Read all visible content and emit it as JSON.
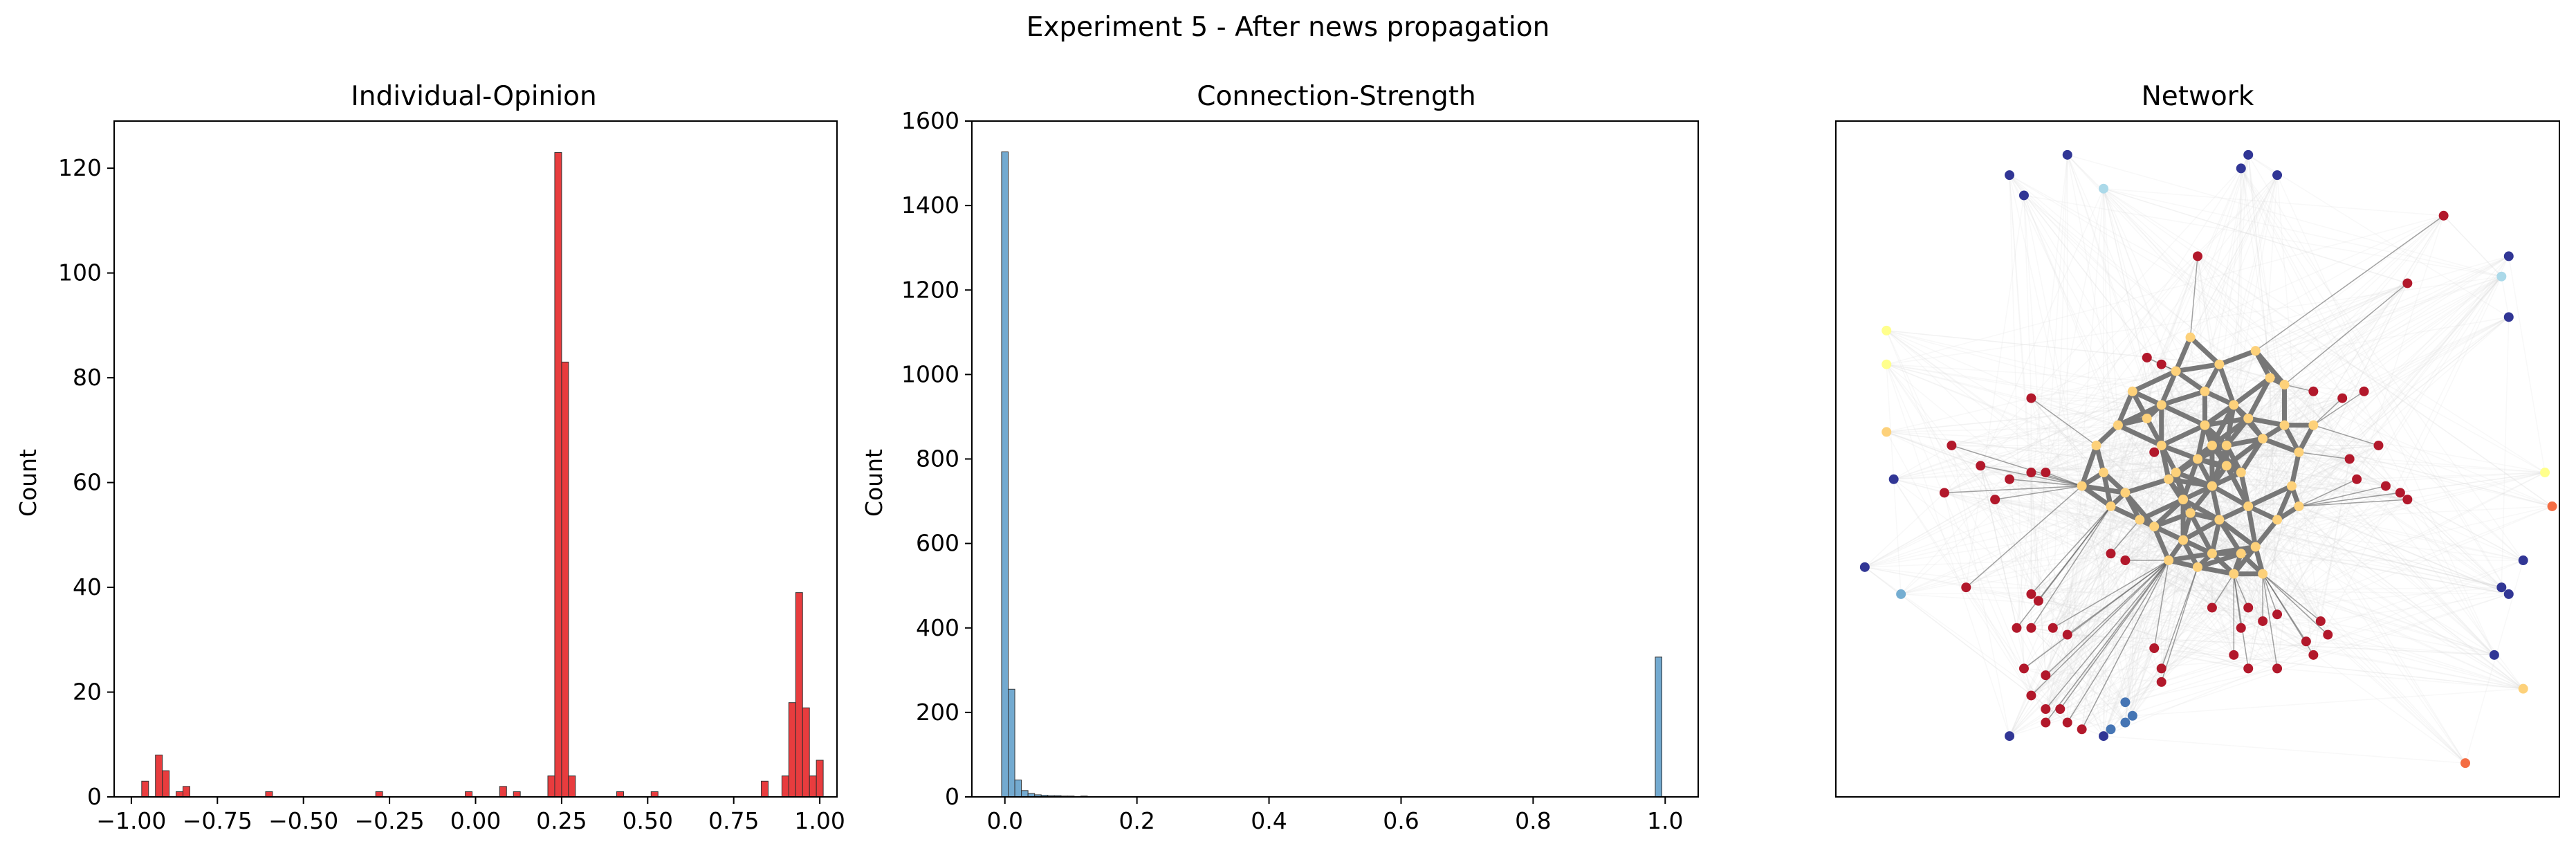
{
  "figure": {
    "suptitle": "Experiment 5 - After news propagation"
  },
  "chart_data": [
    {
      "type": "histogram",
      "title": "Individual-Opinion",
      "xlabel": "",
      "ylabel": "Count",
      "xlim": [
        -1.05,
        1.05
      ],
      "ylim": [
        0,
        129
      ],
      "xticks": [
        -1.0,
        -0.75,
        -0.5,
        -0.25,
        0.0,
        0.25,
        0.5,
        0.75,
        1.0
      ],
      "xtick_labels": [
        "−1.00",
        "−0.75",
        "−0.50",
        "−0.25",
        "0.00",
        "0.25",
        "0.50",
        "0.75",
        "1.00"
      ],
      "yticks": [
        0,
        20,
        40,
        60,
        80,
        100,
        120
      ],
      "bin_width": 0.02,
      "bar_color": "#e41a1c",
      "bins": [
        {
          "x": -0.96,
          "y": 3
        },
        {
          "x": -0.92,
          "y": 8
        },
        {
          "x": -0.9,
          "y": 5
        },
        {
          "x": -0.86,
          "y": 1
        },
        {
          "x": -0.84,
          "y": 2
        },
        {
          "x": -0.6,
          "y": 1
        },
        {
          "x": -0.28,
          "y": 1
        },
        {
          "x": -0.02,
          "y": 1
        },
        {
          "x": 0.08,
          "y": 2
        },
        {
          "x": 0.12,
          "y": 1
        },
        {
          "x": 0.22,
          "y": 4
        },
        {
          "x": 0.24,
          "y": 123
        },
        {
          "x": 0.26,
          "y": 83
        },
        {
          "x": 0.28,
          "y": 4
        },
        {
          "x": 0.42,
          "y": 1
        },
        {
          "x": 0.52,
          "y": 1
        },
        {
          "x": 0.84,
          "y": 3
        },
        {
          "x": 0.9,
          "y": 4
        },
        {
          "x": 0.92,
          "y": 18
        },
        {
          "x": 0.94,
          "y": 39
        },
        {
          "x": 0.96,
          "y": 17
        },
        {
          "x": 0.98,
          "y": 4
        },
        {
          "x": 1.0,
          "y": 7
        }
      ]
    },
    {
      "type": "histogram",
      "title": "Connection-Strength",
      "xlabel": "",
      "ylabel": "Count",
      "xlim": [
        -0.05,
        1.05
      ],
      "ylim": [
        0,
        1600
      ],
      "xticks": [
        0.0,
        0.2,
        0.4,
        0.6,
        0.8,
        1.0
      ],
      "xtick_labels": [
        "0.0",
        "0.2",
        "0.4",
        "0.6",
        "0.8",
        "1.0"
      ],
      "yticks": [
        0,
        200,
        400,
        600,
        800,
        1000,
        1200,
        1400,
        1600
      ],
      "bin_width": 0.01,
      "bar_color": "#5b9bc8",
      "bins": [
        {
          "x": 0.0,
          "y": 1527
        },
        {
          "x": 0.01,
          "y": 255
        },
        {
          "x": 0.02,
          "y": 40
        },
        {
          "x": 0.03,
          "y": 15
        },
        {
          "x": 0.04,
          "y": 8
        },
        {
          "x": 0.05,
          "y": 5
        },
        {
          "x": 0.06,
          "y": 4
        },
        {
          "x": 0.07,
          "y": 3
        },
        {
          "x": 0.08,
          "y": 3
        },
        {
          "x": 0.09,
          "y": 2
        },
        {
          "x": 0.1,
          "y": 2
        },
        {
          "x": 0.12,
          "y": 2
        },
        {
          "x": 0.14,
          "y": 1
        },
        {
          "x": 0.16,
          "y": 1
        },
        {
          "x": 0.18,
          "y": 1
        },
        {
          "x": 0.2,
          "y": 1
        },
        {
          "x": 0.23,
          "y": 1
        },
        {
          "x": 0.28,
          "y": 1
        },
        {
          "x": 0.99,
          "y": 331
        }
      ]
    },
    {
      "type": "scatter",
      "title": "Network",
      "xlabel": "",
      "ylabel": "",
      "xlim": [
        0,
        1
      ],
      "ylim": [
        0,
        1
      ],
      "axes_visible": false,
      "colors": {
        "red": "#b2182b",
        "orange": "#fdd17a",
        "blue": "#313695",
        "midblue": "#4575b4",
        "lightblue": "#74add1",
        "yellow": "#ffff8c",
        "orange2": "#f46d43",
        "pale": "#abd9e9"
      },
      "nodes": [
        {
          "x": 0.24,
          "y": 0.92,
          "c": "blue"
        },
        {
          "x": 0.26,
          "y": 0.89,
          "c": "blue"
        },
        {
          "x": 0.32,
          "y": 0.95,
          "c": "blue"
        },
        {
          "x": 0.37,
          "y": 0.9,
          "c": "pale"
        },
        {
          "x": 0.57,
          "y": 0.95,
          "c": "blue"
        },
        {
          "x": 0.56,
          "y": 0.93,
          "c": "blue"
        },
        {
          "x": 0.61,
          "y": 0.92,
          "c": "blue"
        },
        {
          "x": 0.84,
          "y": 0.86,
          "c": "red"
        },
        {
          "x": 0.93,
          "y": 0.8,
          "c": "blue"
        },
        {
          "x": 0.92,
          "y": 0.77,
          "c": "pale"
        },
        {
          "x": 0.93,
          "y": 0.71,
          "c": "blue"
        },
        {
          "x": 0.07,
          "y": 0.69,
          "c": "yellow"
        },
        {
          "x": 0.07,
          "y": 0.64,
          "c": "yellow"
        },
        {
          "x": 0.07,
          "y": 0.54,
          "c": "orange"
        },
        {
          "x": 0.08,
          "y": 0.47,
          "c": "blue"
        },
        {
          "x": 0.04,
          "y": 0.34,
          "c": "blue"
        },
        {
          "x": 0.09,
          "y": 0.3,
          "c": "lightblue"
        },
        {
          "x": 0.18,
          "y": 0.31,
          "c": "red"
        },
        {
          "x": 0.98,
          "y": 0.48,
          "c": "yellow"
        },
        {
          "x": 0.99,
          "y": 0.43,
          "c": "orange2"
        },
        {
          "x": 0.95,
          "y": 0.35,
          "c": "blue"
        },
        {
          "x": 0.92,
          "y": 0.31,
          "c": "blue"
        },
        {
          "x": 0.93,
          "y": 0.3,
          "c": "blue"
        },
        {
          "x": 0.91,
          "y": 0.21,
          "c": "blue"
        },
        {
          "x": 0.95,
          "y": 0.16,
          "c": "orange"
        },
        {
          "x": 0.87,
          "y": 0.05,
          "c": "orange2"
        },
        {
          "x": 0.24,
          "y": 0.09,
          "c": "blue"
        },
        {
          "x": 0.37,
          "y": 0.09,
          "c": "blue"
        },
        {
          "x": 0.38,
          "y": 0.1,
          "c": "midblue"
        },
        {
          "x": 0.4,
          "y": 0.11,
          "c": "midblue"
        },
        {
          "x": 0.41,
          "y": 0.12,
          "c": "midblue"
        },
        {
          "x": 0.4,
          "y": 0.14,
          "c": "midblue"
        },
        {
          "x": 0.5,
          "y": 0.8,
          "c": "red"
        },
        {
          "x": 0.79,
          "y": 0.76,
          "c": "red"
        },
        {
          "x": 0.43,
          "y": 0.65,
          "c": "red"
        },
        {
          "x": 0.45,
          "y": 0.64,
          "c": "red"
        },
        {
          "x": 0.27,
          "y": 0.59,
          "c": "red"
        },
        {
          "x": 0.66,
          "y": 0.6,
          "c": "red"
        },
        {
          "x": 0.7,
          "y": 0.59,
          "c": "red"
        },
        {
          "x": 0.73,
          "y": 0.6,
          "c": "red"
        },
        {
          "x": 0.16,
          "y": 0.52,
          "c": "red"
        },
        {
          "x": 0.2,
          "y": 0.49,
          "c": "red"
        },
        {
          "x": 0.24,
          "y": 0.47,
          "c": "red"
        },
        {
          "x": 0.27,
          "y": 0.48,
          "c": "red"
        },
        {
          "x": 0.29,
          "y": 0.48,
          "c": "red"
        },
        {
          "x": 0.15,
          "y": 0.45,
          "c": "red"
        },
        {
          "x": 0.22,
          "y": 0.44,
          "c": "red"
        },
        {
          "x": 0.75,
          "y": 0.52,
          "c": "red"
        },
        {
          "x": 0.71,
          "y": 0.5,
          "c": "red"
        },
        {
          "x": 0.72,
          "y": 0.47,
          "c": "red"
        },
        {
          "x": 0.76,
          "y": 0.46,
          "c": "red"
        },
        {
          "x": 0.78,
          "y": 0.45,
          "c": "red"
        },
        {
          "x": 0.79,
          "y": 0.44,
          "c": "red"
        },
        {
          "x": 0.27,
          "y": 0.3,
          "c": "red"
        },
        {
          "x": 0.28,
          "y": 0.29,
          "c": "red"
        },
        {
          "x": 0.25,
          "y": 0.25,
          "c": "red"
        },
        {
          "x": 0.27,
          "y": 0.25,
          "c": "red"
        },
        {
          "x": 0.3,
          "y": 0.25,
          "c": "red"
        },
        {
          "x": 0.32,
          "y": 0.24,
          "c": "red"
        },
        {
          "x": 0.26,
          "y": 0.19,
          "c": "red"
        },
        {
          "x": 0.29,
          "y": 0.18,
          "c": "red"
        },
        {
          "x": 0.27,
          "y": 0.15,
          "c": "red"
        },
        {
          "x": 0.29,
          "y": 0.13,
          "c": "red"
        },
        {
          "x": 0.31,
          "y": 0.13,
          "c": "red"
        },
        {
          "x": 0.29,
          "y": 0.11,
          "c": "red"
        },
        {
          "x": 0.32,
          "y": 0.11,
          "c": "red"
        },
        {
          "x": 0.34,
          "y": 0.1,
          "c": "red"
        },
        {
          "x": 0.44,
          "y": 0.22,
          "c": "red"
        },
        {
          "x": 0.45,
          "y": 0.19,
          "c": "red"
        },
        {
          "x": 0.45,
          "y": 0.17,
          "c": "red"
        },
        {
          "x": 0.52,
          "y": 0.28,
          "c": "red"
        },
        {
          "x": 0.57,
          "y": 0.28,
          "c": "red"
        },
        {
          "x": 0.59,
          "y": 0.26,
          "c": "red"
        },
        {
          "x": 0.61,
          "y": 0.27,
          "c": "red"
        },
        {
          "x": 0.56,
          "y": 0.25,
          "c": "red"
        },
        {
          "x": 0.55,
          "y": 0.21,
          "c": "red"
        },
        {
          "x": 0.57,
          "y": 0.19,
          "c": "red"
        },
        {
          "x": 0.61,
          "y": 0.19,
          "c": "red"
        },
        {
          "x": 0.65,
          "y": 0.23,
          "c": "red"
        },
        {
          "x": 0.67,
          "y": 0.26,
          "c": "red"
        },
        {
          "x": 0.68,
          "y": 0.24,
          "c": "red"
        },
        {
          "x": 0.66,
          "y": 0.21,
          "c": "red"
        },
        {
          "x": 0.44,
          "y": 0.51,
          "c": "red"
        },
        {
          "x": 0.38,
          "y": 0.36,
          "c": "red"
        },
        {
          "x": 0.4,
          "y": 0.35,
          "c": "red"
        },
        {
          "x": 0.37,
          "y": 0.48,
          "c": "orange"
        },
        {
          "x": 0.39,
          "y": 0.55,
          "c": "orange"
        },
        {
          "x": 0.41,
          "y": 0.6,
          "c": "orange"
        },
        {
          "x": 0.43,
          "y": 0.56,
          "c": "orange"
        },
        {
          "x": 0.45,
          "y": 0.52,
          "c": "orange"
        },
        {
          "x": 0.46,
          "y": 0.47,
          "c": "orange"
        },
        {
          "x": 0.48,
          "y": 0.44,
          "c": "orange"
        },
        {
          "x": 0.5,
          "y": 0.5,
          "c": "orange"
        },
        {
          "x": 0.51,
          "y": 0.55,
          "c": "orange"
        },
        {
          "x": 0.52,
          "y": 0.46,
          "c": "orange"
        },
        {
          "x": 0.53,
          "y": 0.41,
          "c": "orange"
        },
        {
          "x": 0.54,
          "y": 0.52,
          "c": "orange"
        },
        {
          "x": 0.55,
          "y": 0.58,
          "c": "orange"
        },
        {
          "x": 0.56,
          "y": 0.48,
          "c": "orange"
        },
        {
          "x": 0.57,
          "y": 0.43,
          "c": "orange"
        },
        {
          "x": 0.58,
          "y": 0.37,
          "c": "orange"
        },
        {
          "x": 0.59,
          "y": 0.53,
          "c": "orange"
        },
        {
          "x": 0.6,
          "y": 0.62,
          "c": "orange"
        },
        {
          "x": 0.62,
          "y": 0.55,
          "c": "orange"
        },
        {
          "x": 0.63,
          "y": 0.46,
          "c": "orange"
        },
        {
          "x": 0.48,
          "y": 0.38,
          "c": "orange"
        },
        {
          "x": 0.5,
          "y": 0.34,
          "c": "orange"
        },
        {
          "x": 0.52,
          "y": 0.36,
          "c": "orange"
        },
        {
          "x": 0.55,
          "y": 0.33,
          "c": "orange"
        },
        {
          "x": 0.56,
          "y": 0.36,
          "c": "orange"
        },
        {
          "x": 0.45,
          "y": 0.58,
          "c": "orange"
        },
        {
          "x": 0.47,
          "y": 0.63,
          "c": "orange"
        },
        {
          "x": 0.49,
          "y": 0.68,
          "c": "orange"
        },
        {
          "x": 0.53,
          "y": 0.64,
          "c": "orange"
        },
        {
          "x": 0.58,
          "y": 0.66,
          "c": "orange"
        },
        {
          "x": 0.62,
          "y": 0.61,
          "c": "orange"
        },
        {
          "x": 0.4,
          "y": 0.45,
          "c": "orange"
        },
        {
          "x": 0.42,
          "y": 0.41,
          "c": "orange"
        },
        {
          "x": 0.44,
          "y": 0.4,
          "c": "orange"
        },
        {
          "x": 0.61,
          "y": 0.41,
          "c": "orange"
        },
        {
          "x": 0.64,
          "y": 0.51,
          "c": "orange"
        },
        {
          "x": 0.66,
          "y": 0.55,
          "c": "orange"
        },
        {
          "x": 0.36,
          "y": 0.52,
          "c": "orange"
        },
        {
          "x": 0.34,
          "y": 0.46,
          "c": "orange"
        },
        {
          "x": 0.51,
          "y": 0.6,
          "c": "orange"
        },
        {
          "x": 0.54,
          "y": 0.49,
          "c": "orange"
        },
        {
          "x": 0.49,
          "y": 0.42,
          "c": "orange"
        },
        {
          "x": 0.38,
          "y": 0.43,
          "c": "orange"
        },
        {
          "x": 0.64,
          "y": 0.43,
          "c": "orange"
        },
        {
          "x": 0.59,
          "y": 0.33,
          "c": "orange"
        },
        {
          "x": 0.46,
          "y": 0.35,
          "c": "orange"
        },
        {
          "x": 0.52,
          "y": 0.52,
          "c": "orange"
        },
        {
          "x": 0.57,
          "y": 0.56,
          "c": "orange"
        },
        {
          "x": 0.47,
          "y": 0.48,
          "c": "orange"
        }
      ]
    }
  ]
}
